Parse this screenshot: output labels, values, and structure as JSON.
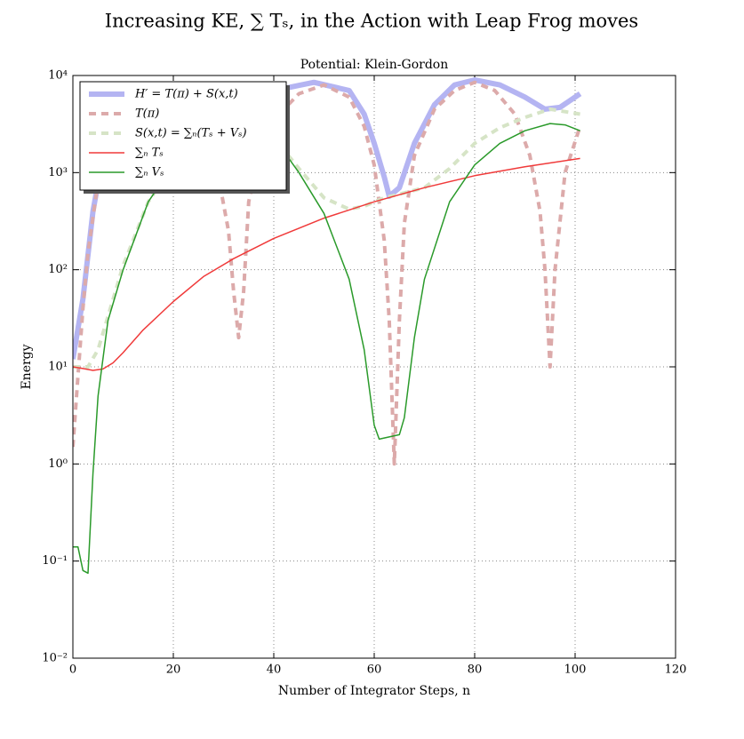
{
  "chart_data": {
    "type": "line",
    "title": "Increasing KE, ∑ Tₛ, in the Action with Leap Frog moves",
    "subtitle": "Potential: Klein-Gordon",
    "x_label": "Number of Integrator Steps, n",
    "y_label": "Energy",
    "yscale": "log",
    "grid": true,
    "legend": "upper left",
    "xlim": [
      0,
      120
    ],
    "xticks": [
      0,
      20,
      40,
      60,
      80,
      100,
      120
    ],
    "ylim": [
      0.01,
      10000
    ],
    "yticks": [
      {
        "value": 0.01,
        "label": "10⁻²"
      },
      {
        "value": 0.1,
        "label": "10⁻¹"
      },
      {
        "value": 1,
        "label": "10⁰"
      },
      {
        "value": 10,
        "label": "10¹"
      },
      {
        "value": 100,
        "label": "10²"
      },
      {
        "value": 1000,
        "label": "10³"
      },
      {
        "value": 10000,
        "label": "10⁴"
      }
    ],
    "series": [
      {
        "name": "H′ = T(π) + S(x,t)",
        "color": "#b4b4f2",
        "width": 6,
        "dashed": false,
        "x": [
          0,
          2,
          4,
          6,
          10,
          15,
          20,
          30,
          40,
          48,
          55,
          58,
          60,
          62,
          63,
          65,
          68,
          72,
          76,
          80,
          85,
          90,
          94,
          97,
          101
        ],
        "values": [
          12,
          50,
          400,
          1500,
          5000,
          8000,
          8000,
          7500,
          7000,
          8500,
          7000,
          4000,
          2000,
          900,
          570,
          700,
          2000,
          5000,
          8000,
          9000,
          8000,
          6000,
          4500,
          4700,
          6500
        ]
      },
      {
        "name": "T(π)",
        "color": "#dcaaaa",
        "width": 4,
        "dashed": true,
        "x": [
          0,
          1,
          2,
          3,
          5,
          8,
          12,
          16,
          20,
          24,
          27,
          29,
          31,
          32,
          33,
          34,
          35,
          37,
          40,
          45,
          50,
          55,
          58,
          60,
          62,
          63,
          64,
          65,
          66,
          68,
          72,
          76,
          80,
          84,
          88,
          91,
          93,
          94,
          95,
          96,
          98,
          101
        ],
        "values": [
          1.5,
          8,
          40,
          150,
          800,
          2500,
          5000,
          6500,
          6000,
          4000,
          2000,
          900,
          250,
          60,
          20,
          60,
          500,
          1500,
          3500,
          6500,
          8000,
          6000,
          3000,
          1200,
          200,
          30,
          1,
          30,
          300,
          1500,
          4500,
          7000,
          8500,
          7000,
          4000,
          1500,
          400,
          100,
          10,
          100,
          1000,
          3000
        ]
      },
      {
        "name": "S(x,t) = ∑ₙ(Tₛ + Vₛ)",
        "color": "#d6e4c6",
        "width": 4,
        "dashed": true,
        "x": [
          0,
          3,
          5,
          10,
          15,
          20,
          30,
          40,
          45,
          50,
          55,
          58,
          60,
          62,
          65,
          70,
          75,
          80,
          85,
          90,
          95,
          101
        ],
        "values": [
          10,
          10,
          15,
          110,
          500,
          1200,
          4000,
          2300,
          1100,
          550,
          420,
          450,
          500,
          550,
          600,
          700,
          1100,
          2000,
          2900,
          3700,
          4500,
          4000
        ]
      },
      {
        "name": "∑ₙ Tₛ",
        "color": "#f03a3a",
        "width": 1.5,
        "dashed": false,
        "x": [
          0,
          2,
          4,
          6,
          8,
          10,
          14,
          20,
          26,
          32,
          40,
          50,
          60,
          70,
          80,
          90,
          101
        ],
        "values": [
          10,
          9.6,
          9.2,
          9.5,
          11,
          14,
          24,
          47,
          85,
          130,
          210,
          340,
          500,
          700,
          930,
          1150,
          1400
        ]
      },
      {
        "name": "∑ₙ Vₛ",
        "color": "#2a9a2a",
        "width": 1.5,
        "dashed": false,
        "x": [
          0,
          1,
          2,
          3,
          4,
          5,
          7,
          10,
          15,
          20,
          25,
          30,
          35,
          40,
          45,
          50,
          55,
          58,
          60,
          61,
          63,
          65,
          66,
          68,
          70,
          75,
          80,
          85,
          90,
          95,
          98,
          101
        ],
        "values": [
          0.14,
          0.14,
          0.08,
          0.075,
          0.8,
          5,
          30,
          100,
          500,
          1200,
          2500,
          4000,
          3500,
          2300,
          1000,
          380,
          80,
          15,
          2.5,
          1.8,
          1.9,
          2.0,
          3,
          20,
          80,
          500,
          1200,
          2000,
          2700,
          3200,
          3100,
          2700
        ]
      }
    ]
  }
}
